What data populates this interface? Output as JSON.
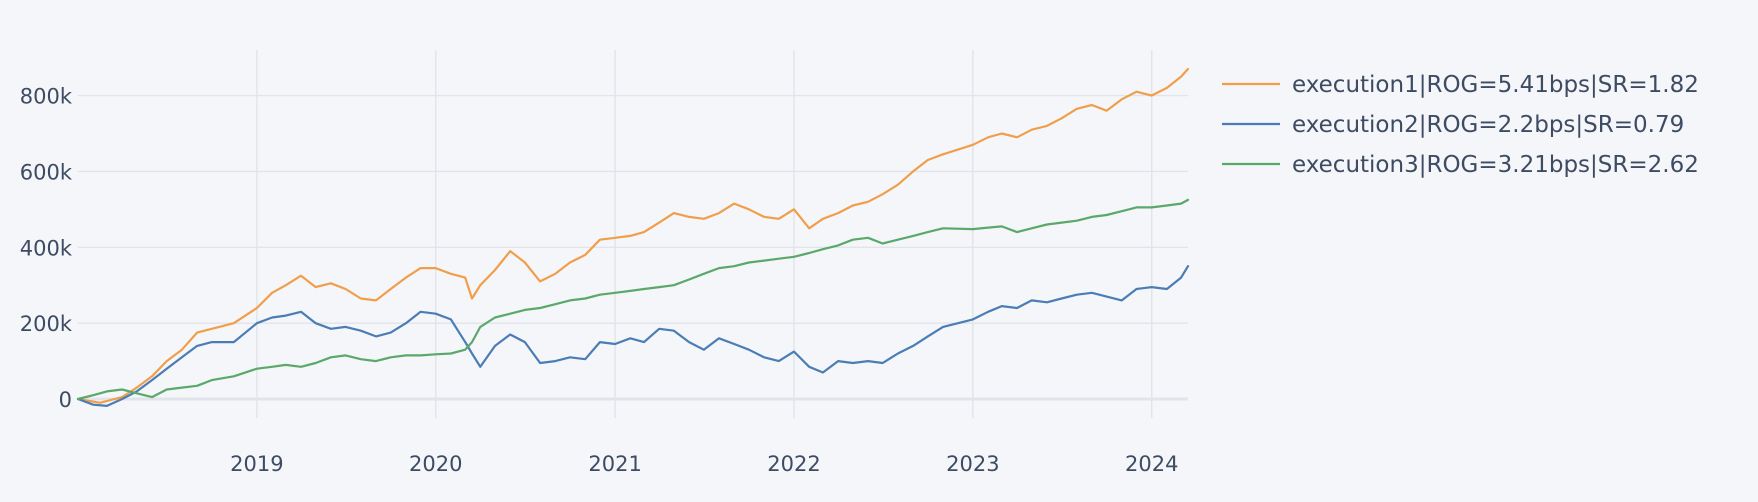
{
  "chart_data": {
    "type": "line",
    "title": "",
    "xlabel": "",
    "ylabel": "",
    "x_range": [
      "2018-01-01",
      "2024-03-15"
    ],
    "ylim": [
      -50000,
      920000
    ],
    "y_ticks": [
      0,
      200000,
      400000,
      600000,
      800000
    ],
    "y_tick_labels": [
      "0",
      "200k",
      "400k",
      "600k",
      "800k"
    ],
    "x_ticks": [
      "2019-01-01",
      "2020-01-01",
      "2021-01-01",
      "2022-01-01",
      "2023-01-01",
      "2024-01-01"
    ],
    "x_tick_labels": [
      "2019",
      "2020",
      "2021",
      "2022",
      "2023",
      "2024"
    ],
    "grid": true,
    "legend_position": "top-right, outside plot",
    "series": [
      {
        "name": "execution1|ROG=5.41bps|SR=1.82",
        "color": "#f19e4b",
        "points": [
          [
            "2018-01-01",
            0
          ],
          [
            "2018-02-15",
            -10000
          ],
          [
            "2018-04-01",
            5000
          ],
          [
            "2018-05-01",
            30000
          ],
          [
            "2018-06-01",
            60000
          ],
          [
            "2018-07-01",
            100000
          ],
          [
            "2018-08-01",
            130000
          ],
          [
            "2018-09-01",
            175000
          ],
          [
            "2018-10-01",
            185000
          ],
          [
            "2018-11-15",
            200000
          ],
          [
            "2019-01-01",
            240000
          ],
          [
            "2019-02-01",
            280000
          ],
          [
            "2019-03-01",
            300000
          ],
          [
            "2019-04-01",
            325000
          ],
          [
            "2019-05-01",
            295000
          ],
          [
            "2019-06-01",
            305000
          ],
          [
            "2019-07-01",
            290000
          ],
          [
            "2019-08-01",
            265000
          ],
          [
            "2019-09-01",
            260000
          ],
          [
            "2019-10-01",
            290000
          ],
          [
            "2019-11-01",
            320000
          ],
          [
            "2019-12-01",
            345000
          ],
          [
            "2020-01-01",
            345000
          ],
          [
            "2020-02-01",
            330000
          ],
          [
            "2020-03-01",
            320000
          ],
          [
            "2020-03-15",
            265000
          ],
          [
            "2020-04-01",
            300000
          ],
          [
            "2020-05-01",
            340000
          ],
          [
            "2020-06-01",
            390000
          ],
          [
            "2020-07-01",
            360000
          ],
          [
            "2020-08-01",
            310000
          ],
          [
            "2020-09-01",
            330000
          ],
          [
            "2020-10-01",
            360000
          ],
          [
            "2020-11-01",
            380000
          ],
          [
            "2020-12-01",
            420000
          ],
          [
            "2021-01-01",
            425000
          ],
          [
            "2021-02-01",
            430000
          ],
          [
            "2021-03-01",
            440000
          ],
          [
            "2021-04-01",
            465000
          ],
          [
            "2021-05-01",
            490000
          ],
          [
            "2021-06-01",
            480000
          ],
          [
            "2021-07-01",
            475000
          ],
          [
            "2021-08-01",
            490000
          ],
          [
            "2021-09-01",
            515000
          ],
          [
            "2021-10-01",
            500000
          ],
          [
            "2021-11-01",
            480000
          ],
          [
            "2021-12-01",
            475000
          ],
          [
            "2022-01-01",
            500000
          ],
          [
            "2022-02-01",
            450000
          ],
          [
            "2022-03-01",
            475000
          ],
          [
            "2022-04-01",
            490000
          ],
          [
            "2022-05-01",
            510000
          ],
          [
            "2022-06-01",
            520000
          ],
          [
            "2022-07-01",
            540000
          ],
          [
            "2022-08-01",
            565000
          ],
          [
            "2022-09-01",
            600000
          ],
          [
            "2022-10-01",
            630000
          ],
          [
            "2022-11-01",
            645000
          ],
          [
            "2023-01-01",
            670000
          ],
          [
            "2023-02-01",
            690000
          ],
          [
            "2023-03-01",
            700000
          ],
          [
            "2023-04-01",
            690000
          ],
          [
            "2023-05-01",
            710000
          ],
          [
            "2023-06-01",
            720000
          ],
          [
            "2023-07-01",
            740000
          ],
          [
            "2023-08-01",
            765000
          ],
          [
            "2023-09-01",
            775000
          ],
          [
            "2023-10-01",
            760000
          ],
          [
            "2023-11-01",
            790000
          ],
          [
            "2023-12-01",
            810000
          ],
          [
            "2024-01-01",
            800000
          ],
          [
            "2024-02-01",
            820000
          ],
          [
            "2024-03-01",
            850000
          ],
          [
            "2024-03-15",
            870000
          ]
        ]
      },
      {
        "name": "execution2|ROG=2.2bps|SR=0.79",
        "color": "#4a7db5",
        "points": [
          [
            "2018-01-01",
            0
          ],
          [
            "2018-02-01",
            -15000
          ],
          [
            "2018-03-01",
            -18000
          ],
          [
            "2018-04-01",
            0
          ],
          [
            "2018-05-01",
            20000
          ],
          [
            "2018-06-01",
            50000
          ],
          [
            "2018-07-01",
            80000
          ],
          [
            "2018-08-01",
            110000
          ],
          [
            "2018-09-01",
            140000
          ],
          [
            "2018-10-01",
            150000
          ],
          [
            "2018-11-15",
            150000
          ],
          [
            "2019-01-01",
            200000
          ],
          [
            "2019-02-01",
            215000
          ],
          [
            "2019-03-01",
            220000
          ],
          [
            "2019-04-01",
            230000
          ],
          [
            "2019-05-01",
            200000
          ],
          [
            "2019-06-01",
            185000
          ],
          [
            "2019-07-01",
            190000
          ],
          [
            "2019-08-01",
            180000
          ],
          [
            "2019-09-01",
            165000
          ],
          [
            "2019-10-01",
            175000
          ],
          [
            "2019-11-01",
            200000
          ],
          [
            "2019-12-01",
            230000
          ],
          [
            "2020-01-01",
            225000
          ],
          [
            "2020-02-01",
            210000
          ],
          [
            "2020-03-01",
            150000
          ],
          [
            "2020-03-15",
            120000
          ],
          [
            "2020-04-01",
            85000
          ],
          [
            "2020-05-01",
            140000
          ],
          [
            "2020-06-01",
            170000
          ],
          [
            "2020-07-01",
            150000
          ],
          [
            "2020-08-01",
            95000
          ],
          [
            "2020-09-01",
            100000
          ],
          [
            "2020-10-01",
            110000
          ],
          [
            "2020-11-01",
            105000
          ],
          [
            "2020-12-01",
            150000
          ],
          [
            "2021-01-01",
            145000
          ],
          [
            "2021-02-01",
            160000
          ],
          [
            "2021-03-01",
            150000
          ],
          [
            "2021-04-01",
            185000
          ],
          [
            "2021-05-01",
            180000
          ],
          [
            "2021-06-01",
            150000
          ],
          [
            "2021-07-01",
            130000
          ],
          [
            "2021-08-01",
            160000
          ],
          [
            "2021-09-01",
            145000
          ],
          [
            "2021-10-01",
            130000
          ],
          [
            "2021-11-01",
            110000
          ],
          [
            "2021-12-01",
            100000
          ],
          [
            "2022-01-01",
            125000
          ],
          [
            "2022-02-01",
            85000
          ],
          [
            "2022-03-01",
            70000
          ],
          [
            "2022-04-01",
            100000
          ],
          [
            "2022-05-01",
            95000
          ],
          [
            "2022-06-01",
            100000
          ],
          [
            "2022-07-01",
            95000
          ],
          [
            "2022-08-01",
            120000
          ],
          [
            "2022-09-01",
            140000
          ],
          [
            "2022-10-01",
            165000
          ],
          [
            "2022-11-01",
            190000
          ],
          [
            "2023-01-01",
            210000
          ],
          [
            "2023-02-01",
            230000
          ],
          [
            "2023-03-01",
            245000
          ],
          [
            "2023-04-01",
            240000
          ],
          [
            "2023-05-01",
            260000
          ],
          [
            "2023-06-01",
            255000
          ],
          [
            "2023-07-01",
            265000
          ],
          [
            "2023-08-01",
            275000
          ],
          [
            "2023-09-01",
            280000
          ],
          [
            "2023-10-01",
            270000
          ],
          [
            "2023-11-01",
            260000
          ],
          [
            "2023-12-01",
            290000
          ],
          [
            "2024-01-01",
            295000
          ],
          [
            "2024-02-01",
            290000
          ],
          [
            "2024-03-01",
            320000
          ],
          [
            "2024-03-15",
            350000
          ]
        ]
      },
      {
        "name": "execution3|ROG=3.21bps|SR=2.62",
        "color": "#5aa86a",
        "points": [
          [
            "2018-01-01",
            0
          ],
          [
            "2018-02-01",
            10000
          ],
          [
            "2018-03-01",
            20000
          ],
          [
            "2018-04-01",
            25000
          ],
          [
            "2018-05-01",
            15000
          ],
          [
            "2018-06-01",
            5000
          ],
          [
            "2018-07-01",
            25000
          ],
          [
            "2018-08-01",
            30000
          ],
          [
            "2018-09-01",
            35000
          ],
          [
            "2018-10-01",
            50000
          ],
          [
            "2018-11-15",
            60000
          ],
          [
            "2019-01-01",
            80000
          ],
          [
            "2019-02-01",
            85000
          ],
          [
            "2019-03-01",
            90000
          ],
          [
            "2019-04-01",
            85000
          ],
          [
            "2019-05-01",
            95000
          ],
          [
            "2019-06-01",
            110000
          ],
          [
            "2019-07-01",
            115000
          ],
          [
            "2019-08-01",
            105000
          ],
          [
            "2019-09-01",
            100000
          ],
          [
            "2019-10-01",
            110000
          ],
          [
            "2019-11-01",
            115000
          ],
          [
            "2019-12-01",
            115000
          ],
          [
            "2020-01-01",
            118000
          ],
          [
            "2020-02-01",
            120000
          ],
          [
            "2020-03-01",
            130000
          ],
          [
            "2020-03-15",
            150000
          ],
          [
            "2020-04-01",
            190000
          ],
          [
            "2020-05-01",
            215000
          ],
          [
            "2020-06-01",
            225000
          ],
          [
            "2020-07-01",
            235000
          ],
          [
            "2020-08-01",
            240000
          ],
          [
            "2020-09-01",
            250000
          ],
          [
            "2020-10-01",
            260000
          ],
          [
            "2020-11-01",
            265000
          ],
          [
            "2020-12-01",
            275000
          ],
          [
            "2021-01-01",
            280000
          ],
          [
            "2021-02-01",
            285000
          ],
          [
            "2021-03-01",
            290000
          ],
          [
            "2021-04-01",
            295000
          ],
          [
            "2021-05-01",
            300000
          ],
          [
            "2021-06-01",
            315000
          ],
          [
            "2021-07-01",
            330000
          ],
          [
            "2021-08-01",
            345000
          ],
          [
            "2021-09-01",
            350000
          ],
          [
            "2021-10-01",
            360000
          ],
          [
            "2021-11-01",
            365000
          ],
          [
            "2021-12-01",
            370000
          ],
          [
            "2022-01-01",
            375000
          ],
          [
            "2022-02-01",
            385000
          ],
          [
            "2022-03-01",
            395000
          ],
          [
            "2022-04-01",
            405000
          ],
          [
            "2022-05-01",
            420000
          ],
          [
            "2022-06-01",
            425000
          ],
          [
            "2022-07-01",
            410000
          ],
          [
            "2022-08-01",
            420000
          ],
          [
            "2022-09-01",
            430000
          ],
          [
            "2022-10-01",
            440000
          ],
          [
            "2022-11-01",
            450000
          ],
          [
            "2023-01-01",
            448000
          ],
          [
            "2023-02-01",
            452000
          ],
          [
            "2023-03-01",
            455000
          ],
          [
            "2023-04-01",
            440000
          ],
          [
            "2023-05-01",
            450000
          ],
          [
            "2023-06-01",
            460000
          ],
          [
            "2023-07-01",
            465000
          ],
          [
            "2023-08-01",
            470000
          ],
          [
            "2023-09-01",
            480000
          ],
          [
            "2023-10-01",
            485000
          ],
          [
            "2023-11-01",
            495000
          ],
          [
            "2023-12-01",
            505000
          ],
          [
            "2024-01-01",
            505000
          ],
          [
            "2024-02-01",
            510000
          ],
          [
            "2024-03-01",
            515000
          ],
          [
            "2024-03-15",
            525000
          ]
        ]
      }
    ]
  }
}
